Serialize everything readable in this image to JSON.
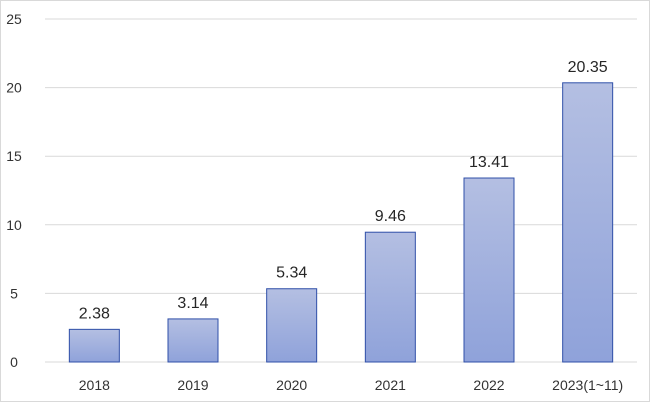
{
  "chart_data": {
    "type": "bar",
    "title": "",
    "xlabel": "",
    "ylabel": "",
    "categories": [
      "2018",
      "2019",
      "2020",
      "2021",
      "2022",
      "2023(1~11)"
    ],
    "values": [
      2.38,
      3.14,
      5.34,
      9.46,
      13.41,
      20.35
    ],
    "value_labels": [
      "2.38",
      "3.14",
      "5.34",
      "9.46",
      "13.41",
      "20.35"
    ],
    "ylim": [
      0,
      25
    ],
    "yticks": [
      0,
      5,
      10,
      15,
      20,
      25
    ],
    "ytick_labels": [
      "0",
      "5",
      "10",
      "15",
      "20",
      "25"
    ],
    "grid": true,
    "legend": "none",
    "colors": {
      "bar_top": "#b4bfe2",
      "bar_bottom": "#8fa2da",
      "bar_stroke": "#2f4fa8",
      "grid": "#d9d9d9",
      "axis": "#d9d9d9"
    }
  }
}
